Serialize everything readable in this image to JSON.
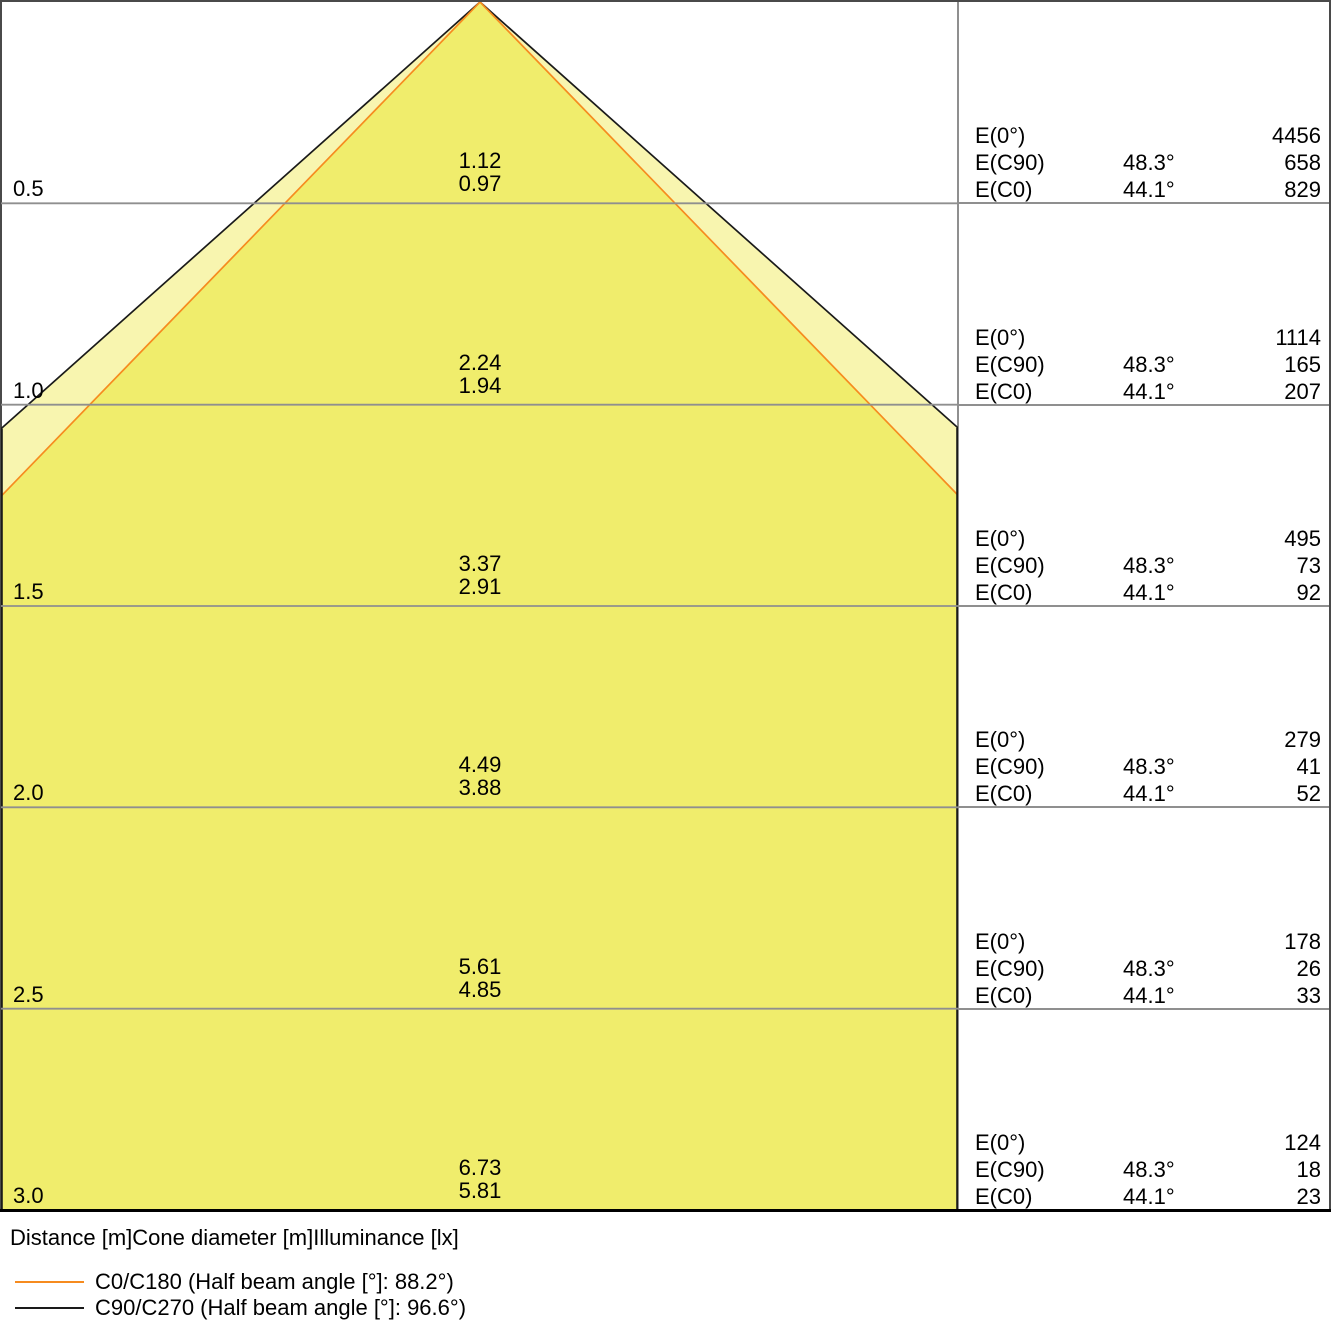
{
  "chart_data": {
    "type": "cone-diagram",
    "title": "",
    "footer_caption": "Distance [m]Cone diameter [m]Illuminance [lx]",
    "ylim": [
      0,
      3.0
    ],
    "distances_m": [
      0.5,
      1.0,
      1.5,
      2.0,
      2.5,
      3.0
    ],
    "rows": [
      {
        "distance": "0.5",
        "diameter_c90": "1.12",
        "diameter_c0": "0.97",
        "e0_label": "E(0°)",
        "e0": "4456",
        "ec90_label": "E(C90)",
        "ec90_angle": "48.3°",
        "ec90": "658",
        "ec0_label": "E(C0)",
        "ec0_angle": "44.1°",
        "ec0": "829"
      },
      {
        "distance": "1.0",
        "diameter_c90": "2.24",
        "diameter_c0": "1.94",
        "e0_label": "E(0°)",
        "e0": "1114",
        "ec90_label": "E(C90)",
        "ec90_angle": "48.3°",
        "ec90": "165",
        "ec0_label": "E(C0)",
        "ec0_angle": "44.1°",
        "ec0": "207"
      },
      {
        "distance": "1.5",
        "diameter_c90": "3.37",
        "diameter_c0": "2.91",
        "e0_label": "E(0°)",
        "e0": "495",
        "ec90_label": "E(C90)",
        "ec90_angle": "48.3°",
        "ec90": "73",
        "ec0_label": "E(C0)",
        "ec0_angle": "44.1°",
        "ec0": "92"
      },
      {
        "distance": "2.0",
        "diameter_c90": "4.49",
        "diameter_c0": "3.88",
        "e0_label": "E(0°)",
        "e0": "279",
        "ec90_label": "E(C90)",
        "ec90_angle": "48.3°",
        "ec90": "41",
        "ec0_label": "E(C0)",
        "ec0_angle": "44.1°",
        "ec0": "52"
      },
      {
        "distance": "2.5",
        "diameter_c90": "5.61",
        "diameter_c0": "4.85",
        "e0_label": "E(0°)",
        "e0": "178",
        "ec90_label": "E(C90)",
        "ec90_angle": "48.3°",
        "ec90": "26",
        "ec0_label": "E(C0)",
        "ec0_angle": "44.1°",
        "ec0": "33"
      },
      {
        "distance": "3.0",
        "diameter_c90": "6.73",
        "diameter_c0": "5.81",
        "e0_label": "E(0°)",
        "e0": "124",
        "ec90_label": "E(C90)",
        "ec90_angle": "48.3°",
        "ec90": "18",
        "ec0_label": "E(C0)",
        "ec0_angle": "44.1°",
        "ec0": "23"
      }
    ],
    "series": [
      {
        "id": "C0",
        "name": "C0/C180 (Half beam angle [°]: 88.2°)",
        "beam_angle_deg": 88.2,
        "half_angle_deg": 44.1,
        "line_color": "#F68B1F",
        "fill_color": "#F0ED6C"
      },
      {
        "id": "C90",
        "name": "C90/C270 (Half beam angle [°]: 96.6°)",
        "beam_angle_deg": 96.6,
        "half_angle_deg": 48.3,
        "line_color": "#1A1A1A",
        "fill_color": "#F8F5AF"
      }
    ],
    "legend_position": "bottom-left",
    "grid": true
  },
  "colors": {
    "cone_inner_fill": "#F0ED6C",
    "cone_outer_fill": "#F8F5AF",
    "c0_line": "#F68B1F",
    "c90_line": "#1A1A1A",
    "grid_line": "#8F8F8F",
    "outer_border": "#4A4A4A",
    "bottom_border": "#000000",
    "text": "#000000",
    "background": "#FFFFFF"
  }
}
